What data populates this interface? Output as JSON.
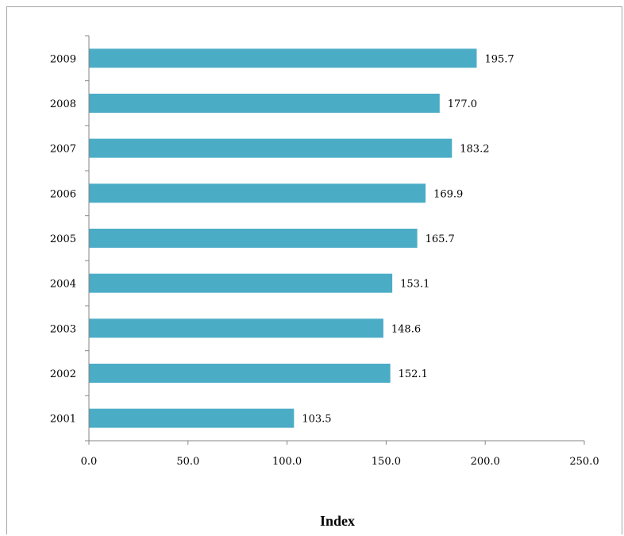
{
  "chart_data": {
    "type": "bar",
    "orientation": "horizontal",
    "categories": [
      "2001",
      "2002",
      "2003",
      "2004",
      "2005",
      "2006",
      "2007",
      "2008",
      "2009"
    ],
    "values": [
      103.5,
      152.1,
      148.6,
      153.1,
      165.7,
      169.9,
      183.2,
      177.0,
      195.7
    ],
    "value_labels": [
      "103.5",
      "152.1",
      "148.6",
      "153.1",
      "165.7",
      "169.9",
      "183.2",
      "177.0",
      "195.7"
    ],
    "xlabel": "Index",
    "ylabel": "",
    "xlim": [
      0,
      250
    ],
    "x_ticks": [
      "0.0",
      "50.0",
      "100.0",
      "150.0",
      "200.0",
      "250.0"
    ],
    "grid": false,
    "bar_color": "#4bacc6"
  }
}
